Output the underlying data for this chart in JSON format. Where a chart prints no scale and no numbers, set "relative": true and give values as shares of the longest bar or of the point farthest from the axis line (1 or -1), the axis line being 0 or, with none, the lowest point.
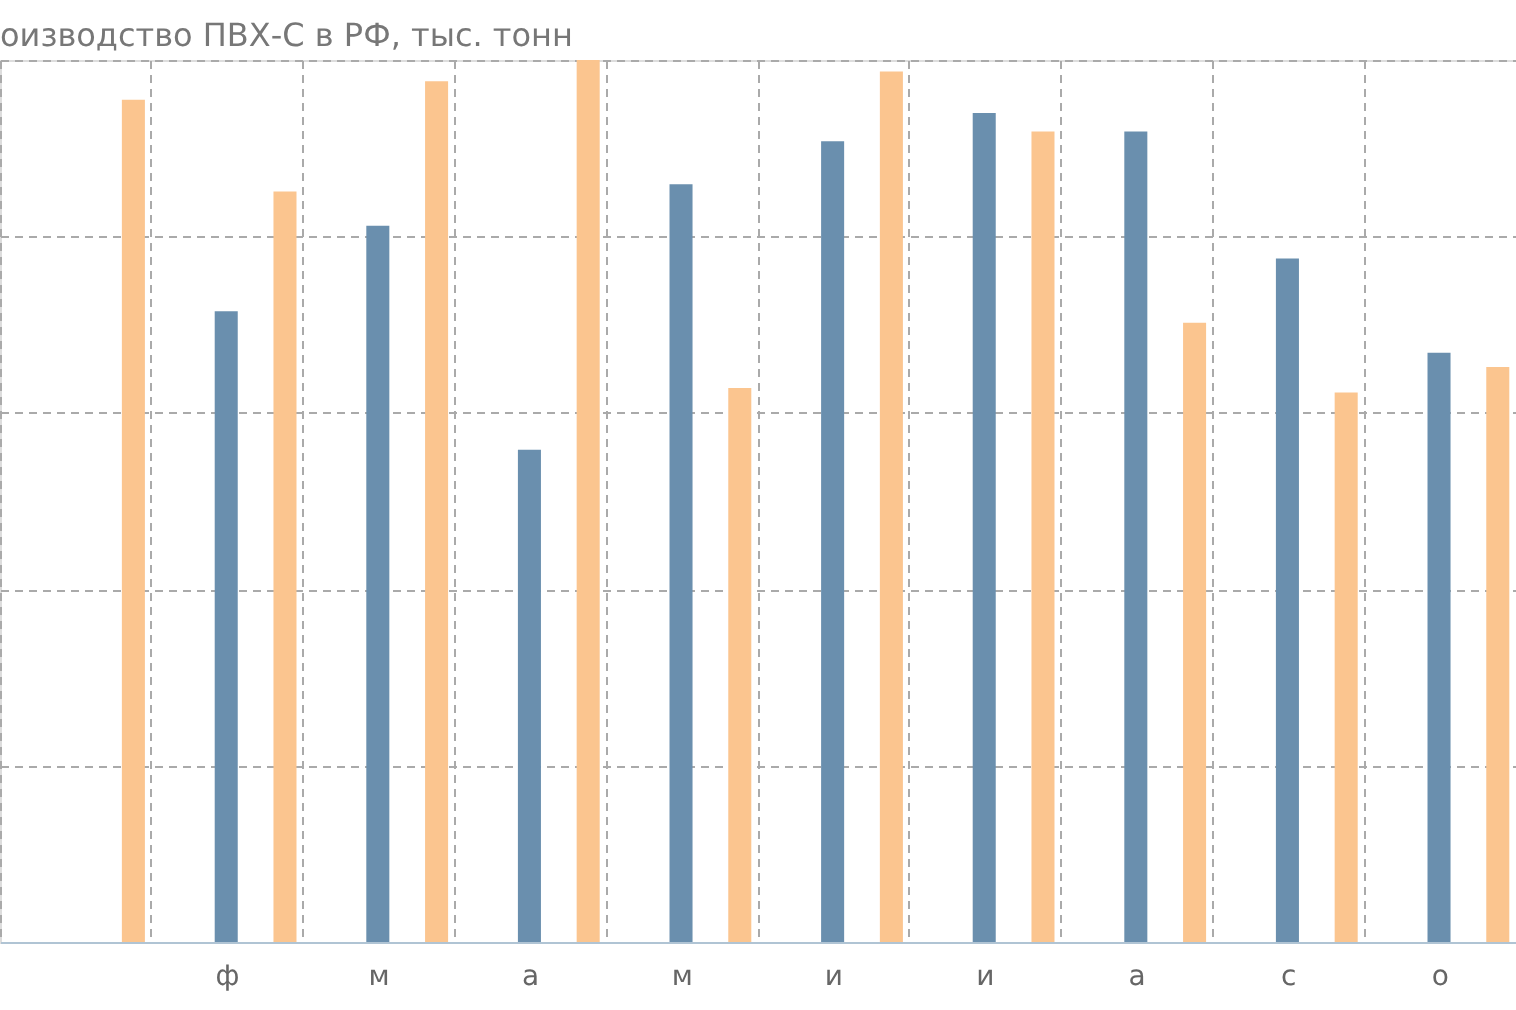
{
  "chart_data": {
    "type": "bar",
    "title": "оизводство ПВХ-С в РФ, тыс. тонн",
    "relative": true,
    "grid": true,
    "legend": false,
    "categories": [
      null,
      "ф",
      "м",
      "а",
      "м",
      "и",
      "и",
      "а",
      "с",
      "о"
    ],
    "series": [
      {
        "color": "#6a8fae",
        "values": [
          null,
          0.715,
          0.812,
          0.558,
          0.859,
          0.908,
          0.94,
          0.919,
          0.775,
          0.668
        ]
      },
      {
        "color": "#fbc58f",
        "values": [
          0.955,
          0.851,
          0.976,
          1,
          0.628,
          0.987,
          0.919,
          0.702,
          0.623,
          0.652
        ]
      }
    ]
  }
}
